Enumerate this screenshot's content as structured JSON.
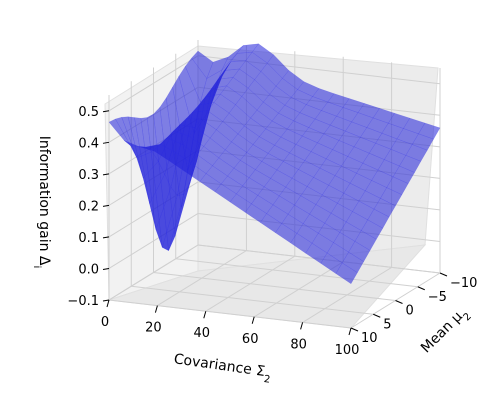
{
  "chart_data": {
    "type": "surface3d",
    "title": "",
    "xlabel": "Covariance Σ₂",
    "ylabel": "Mean μ₂",
    "zlabel": "Information gain Δᵢ",
    "xlabel_parts": {
      "main": "Covariance Σ",
      "sub": "2"
    },
    "ylabel_parts": {
      "main": "Mean μ",
      "sub": "2"
    },
    "zlabel_parts": {
      "main": "Information gain Δ",
      "sub": "i"
    },
    "xticks": [
      "0",
      "20",
      "40",
      "60",
      "80",
      "100"
    ],
    "yticks": [
      "−10",
      "−5",
      "0",
      "5",
      "10"
    ],
    "zticks": [
      "−0.1",
      "0.0",
      "0.1",
      "0.2",
      "0.3",
      "0.4",
      "0.5"
    ],
    "xlim": [
      0,
      100
    ],
    "ylim": [
      -10,
      10
    ],
    "zlim": [
      -0.1,
      0.55
    ],
    "grid": true,
    "surface_color": "#1f1fd8",
    "surface_edge_color": "#2a2ae6",
    "corner_values": {
      "Sigma0_mu_minus10": 0.52,
      "Sigma0_mu_plus10": 0.47,
      "Sigma100_mu_minus10": 0.36,
      "Sigma100_mu_plus10": 0.04
    },
    "min_value_approx": -0.05
  }
}
